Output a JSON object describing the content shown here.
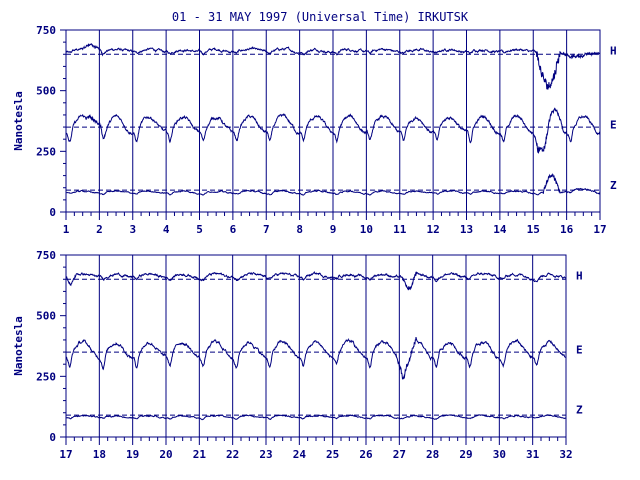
{
  "chart_data": {
    "type": "line",
    "title": "01 - 31 MAY 1997 (Universal Time) IRKUTSK",
    "ylabel": "Nanotesla",
    "color": "#000080",
    "ylim": [
      0,
      750
    ],
    "yticks": [
      0,
      250,
      500,
      750
    ],
    "panels": [
      {
        "xlim": [
          1,
          17
        ],
        "xticks": [
          1,
          2,
          3,
          4,
          5,
          6,
          7,
          8,
          9,
          10,
          11,
          12,
          13,
          14,
          15,
          16,
          17
        ],
        "baselines": [
          650,
          350,
          90
        ],
        "series": [
          {
            "name": "H",
            "level": 665,
            "daily_amp": 8,
            "noise": 6,
            "events": [
              [
                1.5,
                2.1,
                25
              ],
              [
                15.1,
                15.8,
                -150
              ],
              [
                15.8,
                17.0,
                -25
              ]
            ]
          },
          {
            "name": "E",
            "level": 360,
            "daily_amp": 45,
            "noise": 8,
            "events": [
              [
                1.6,
                2.2,
                40
              ],
              [
                15.1,
                15.5,
                -110
              ],
              [
                15.5,
                15.9,
                40
              ]
            ]
          },
          {
            "name": "Z",
            "level": 82,
            "daily_amp": 6,
            "noise": 3,
            "events": [
              [
                15.3,
                15.8,
                60
              ],
              [
                15.8,
                17.0,
                10
              ]
            ]
          }
        ]
      },
      {
        "xlim": [
          17,
          32
        ],
        "xticks": [
          17,
          18,
          19,
          20,
          21,
          22,
          23,
          24,
          25,
          26,
          27,
          28,
          29,
          30,
          31,
          32
        ],
        "baselines": [
          650,
          350,
          90
        ],
        "series": [
          {
            "name": "H",
            "level": 665,
            "daily_amp": 10,
            "noise": 6,
            "events": [
              [
                17.0,
                17.3,
                -20
              ],
              [
                27.1,
                27.5,
                -55
              ]
            ]
          },
          {
            "name": "E",
            "level": 360,
            "daily_amp": 45,
            "noise": 8,
            "events": [
              [
                26.9,
                27.5,
                -60
              ]
            ]
          },
          {
            "name": "Z",
            "level": 84,
            "daily_amp": 6,
            "noise": 3,
            "events": []
          }
        ]
      }
    ]
  }
}
